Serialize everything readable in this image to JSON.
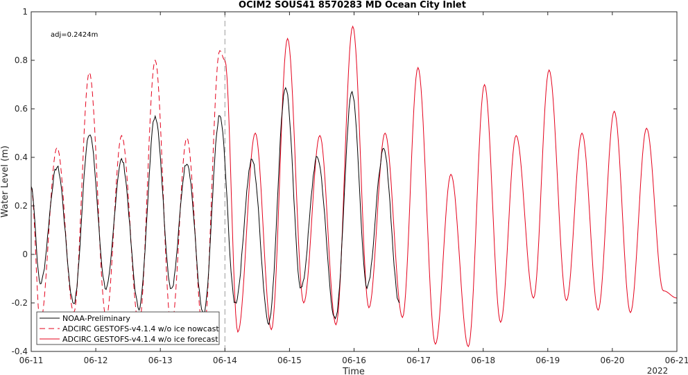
{
  "chart_data": {
    "type": "line",
    "title": "OCIM2 SOUS41 8570283 MD Ocean City Inlet",
    "xlabel": "Time",
    "ylabel": "Water Level (m)",
    "ylim": [
      -0.4,
      1.0
    ],
    "yticks": [
      "-0.4",
      "-0.2",
      "0",
      "0.2",
      "0.4",
      "0.6",
      "0.8",
      "1"
    ],
    "xlim": [
      0,
      10
    ],
    "xticks": [
      "06-11",
      "06-12",
      "06-13",
      "06-14",
      "06-15",
      "06-16",
      "06-17",
      "06-18",
      "06-19",
      "06-20",
      "06-21"
    ],
    "year_label": "2022",
    "annotation": "adj=0.2424m",
    "nowcast_forecast_boundary": 3,
    "grid": false,
    "legend_position": "bottom-left",
    "colors": {
      "observed": "#000000",
      "model": "#e4001b",
      "boundary": "#999999"
    },
    "series": [
      {
        "name": "NOAA-Preliminary",
        "style": "solid",
        "extrema_x": [
          0.0,
          0.14,
          0.4,
          0.66,
          0.9,
          1.16,
          1.4,
          1.67,
          1.92,
          2.17,
          2.41,
          2.67,
          2.92,
          3.16,
          3.42,
          3.68,
          3.94,
          4.18,
          4.43,
          4.71,
          4.97,
          5.2,
          5.46,
          5.7
        ],
        "extrema_y": [
          0.28,
          -0.12,
          0.36,
          -0.2,
          0.5,
          -0.14,
          0.39,
          -0.22,
          0.57,
          -0.14,
          0.38,
          -0.25,
          0.57,
          -0.2,
          0.39,
          -0.28,
          0.69,
          -0.14,
          0.4,
          -0.27,
          0.67,
          -0.13,
          0.43,
          -0.2
        ]
      },
      {
        "name": "ADCIRC GESTOFS-v4.1.4 w/o ice nowcast",
        "style": "dashed",
        "extrema_x": [
          0.0,
          0.14,
          0.4,
          0.66,
          0.9,
          1.16,
          1.4,
          1.67,
          1.92,
          2.17,
          2.41,
          2.67,
          2.92,
          3.0
        ],
        "extrema_y": [
          0.28,
          -0.28,
          0.44,
          -0.24,
          0.75,
          -0.26,
          0.49,
          -0.29,
          0.8,
          -0.3,
          0.48,
          -0.33,
          0.84,
          0.8
        ]
      },
      {
        "name": "ADCIRC GESTOFS-v4.1.4 w/o ice forecast",
        "style": "solid",
        "extrema_x": [
          3.0,
          3.2,
          3.47,
          3.72,
          3.97,
          4.22,
          4.47,
          4.72,
          4.98,
          5.23,
          5.48,
          5.75,
          5.99,
          6.26,
          6.5,
          6.77,
          7.02,
          7.27,
          7.51,
          7.78,
          8.02,
          8.29,
          8.53,
          8.78,
          9.03,
          9.28,
          9.53,
          9.79,
          10.0
        ],
        "extrema_y": [
          0.8,
          -0.32,
          0.5,
          -0.31,
          0.89,
          -0.2,
          0.49,
          -0.29,
          0.94,
          -0.22,
          0.5,
          -0.26,
          0.77,
          -0.37,
          0.33,
          -0.38,
          0.7,
          -0.28,
          0.49,
          -0.18,
          0.76,
          -0.19,
          0.5,
          -0.23,
          0.59,
          -0.24,
          0.52,
          -0.15,
          -0.18
        ]
      }
    ]
  }
}
